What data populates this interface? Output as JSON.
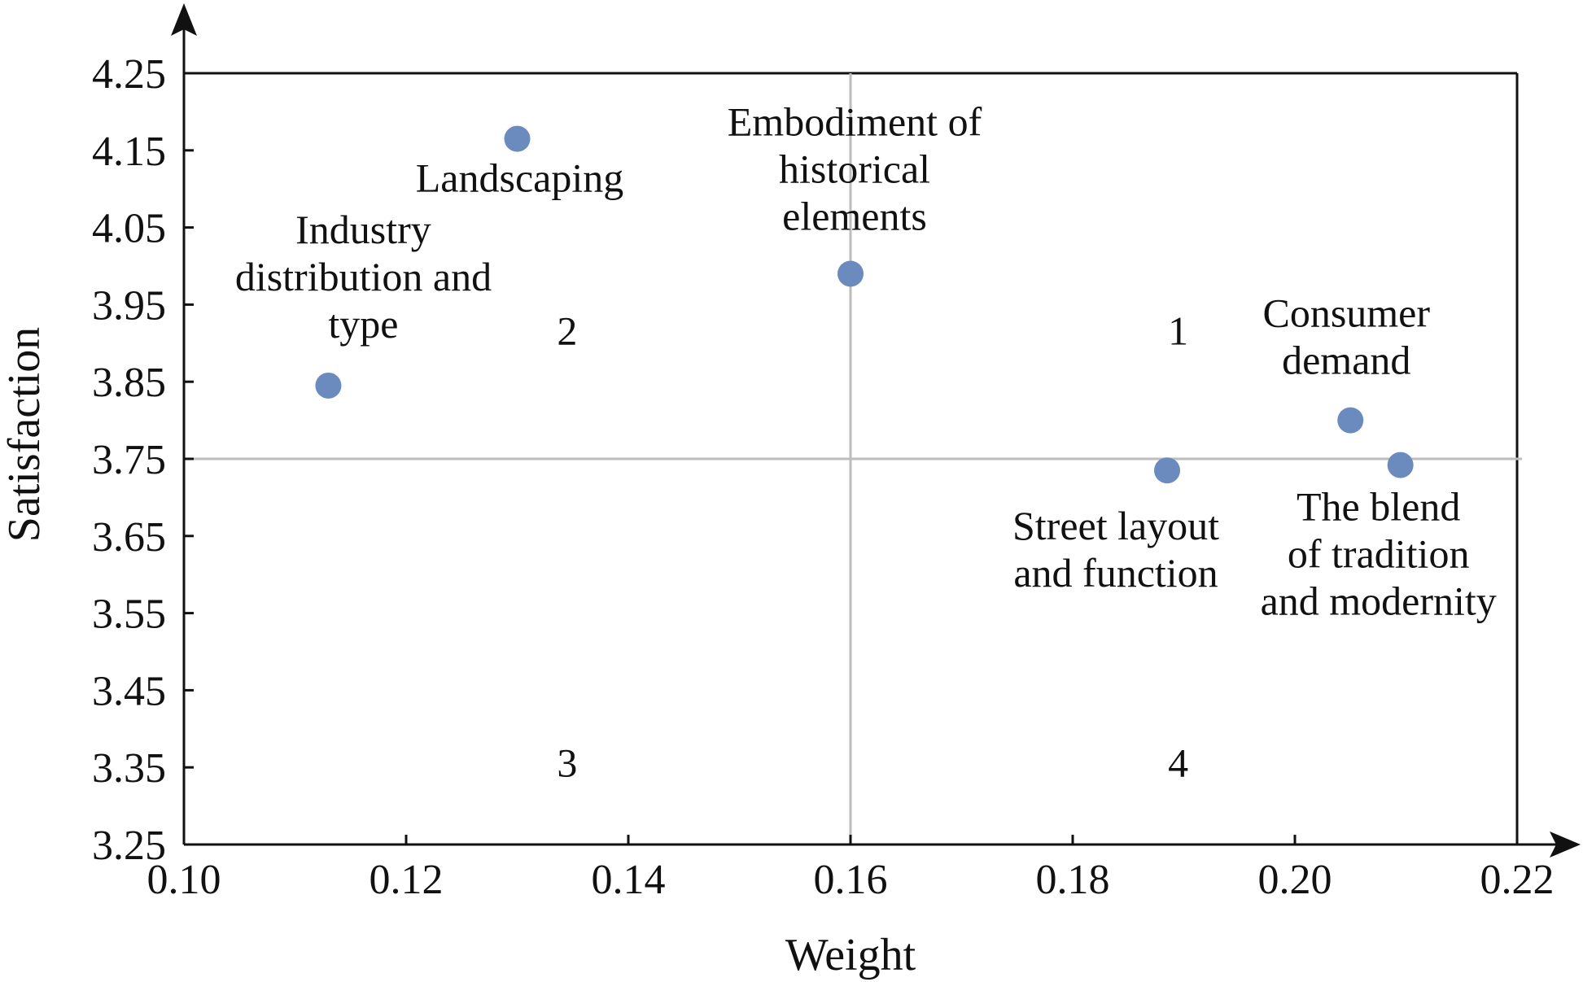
{
  "chart_data": {
    "type": "scatter",
    "xlabel": "Weight",
    "ylabel": "Satisfaction",
    "xlim": [
      0.1,
      0.22
    ],
    "ylim": [
      3.25,
      4.25
    ],
    "xticks": [
      "0.10",
      "0.12",
      "0.14",
      "0.16",
      "0.18",
      "0.20",
      "0.22"
    ],
    "yticks": [
      "3.25",
      "3.35",
      "3.45",
      "3.55",
      "3.65",
      "3.75",
      "3.85",
      "3.95",
      "4.05",
      "4.15",
      "4.25"
    ],
    "reference_lines": {
      "x": 0.16,
      "y": 3.75
    },
    "marker_color": "#6B8BBF",
    "reference_line_color": "#BDBDBD",
    "points": [
      {
        "lines": [
          "Industry",
          "distribution and",
          "type"
        ],
        "x": 0.113,
        "y": 3.845
      },
      {
        "lines": [
          "Landscaping"
        ],
        "x": 0.13,
        "y": 4.165
      },
      {
        "lines": [
          "Embodiment of",
          "historical",
          "elements"
        ],
        "x": 0.16,
        "y": 3.99
      },
      {
        "lines": [
          "Consumer",
          "demand"
        ],
        "x": 0.205,
        "y": 3.8
      },
      {
        "lines": [
          "Street layout",
          "and function"
        ],
        "x": 0.1885,
        "y": 3.735
      },
      {
        "lines": [
          "The blend",
          "of tradition",
          "and modernity"
        ],
        "x": 0.2095,
        "y": 3.742
      }
    ],
    "quadrants": [
      {
        "label": "1",
        "x": 0.1895,
        "y": 3.915
      },
      {
        "label": "2",
        "x": 0.1345,
        "y": 3.915
      },
      {
        "label": "3",
        "x": 0.1345,
        "y": 3.355
      },
      {
        "label": "4",
        "x": 0.1895,
        "y": 3.355
      }
    ]
  }
}
